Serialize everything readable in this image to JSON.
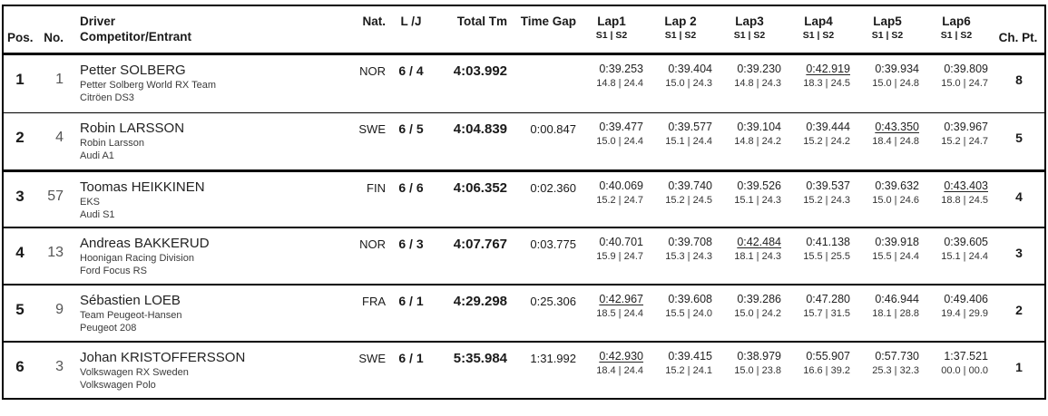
{
  "header": {
    "pos": "Pos.",
    "no": "No.",
    "driver_line1": "Driver",
    "driver_line2": "Competitor/Entrant",
    "nat": "Nat.",
    "lj": "L /J",
    "total": "Total Tm",
    "gap": "Time Gap",
    "laps": [
      {
        "label": "Lap1",
        "sub": "S1 | S2"
      },
      {
        "label": "Lap 2",
        "sub": "S1 | S2"
      },
      {
        "label": "Lap3",
        "sub": "S1 | S2"
      },
      {
        "label": "Lap4",
        "sub": "S1 | S2"
      },
      {
        "label": "Lap5",
        "sub": "S1 | S2"
      },
      {
        "label": "Lap6",
        "sub": "S1 | S2"
      }
    ],
    "chpt": "Ch. Pt."
  },
  "rows": [
    {
      "pos": "1",
      "no": "1",
      "driver": "Petter SOLBERG",
      "team": "Petter Solberg World RX Team",
      "car": "Citröen DS3",
      "nat": "NOR",
      "lj": "6 / 4",
      "total": "4:03.992",
      "gap": "",
      "laps": [
        {
          "time": "0:39.253",
          "sectors": "14.8 | 24.4",
          "joker": false
        },
        {
          "time": "0:39.404",
          "sectors": "15.0 | 24.3",
          "joker": false
        },
        {
          "time": "0:39.230",
          "sectors": "14.8 | 24.3",
          "joker": false
        },
        {
          "time": "0:42.919",
          "sectors": "18.3 | 24.5",
          "joker": true
        },
        {
          "time": "0:39.934",
          "sectors": "15.0 | 24.8",
          "joker": false
        },
        {
          "time": "0:39.809",
          "sectors": "15.0 | 24.7",
          "joker": false
        }
      ],
      "chpt": "8"
    },
    {
      "pos": "2",
      "no": "4",
      "driver": "Robin LARSSON",
      "team": "Robin Larsson",
      "car": "Audi A1",
      "nat": "SWE",
      "lj": "6 / 5",
      "total": "4:04.839",
      "gap": "0:00.847",
      "laps": [
        {
          "time": "0:39.477",
          "sectors": "15.0 | 24.4",
          "joker": false
        },
        {
          "time": "0:39.577",
          "sectors": "15.1 | 24.4",
          "joker": false
        },
        {
          "time": "0:39.104",
          "sectors": "14.8 | 24.2",
          "joker": false
        },
        {
          "time": "0:39.444",
          "sectors": "15.2 | 24.2",
          "joker": false
        },
        {
          "time": "0:43.350",
          "sectors": "18.4 | 24.8",
          "joker": true
        },
        {
          "time": "0:39.967",
          "sectors": "15.2 | 24.7",
          "joker": false
        }
      ],
      "chpt": "5"
    },
    {
      "pos": "3",
      "no": "57",
      "driver": "Toomas HEIKKINEN",
      "team": "EKS",
      "car": "Audi S1",
      "nat": "FIN",
      "lj": "6 / 6",
      "total": "4:06.352",
      "gap": "0:02.360",
      "laps": [
        {
          "time": "0:40.069",
          "sectors": "15.2 | 24.7",
          "joker": false
        },
        {
          "time": "0:39.740",
          "sectors": "15.2 | 24.5",
          "joker": false
        },
        {
          "time": "0:39.526",
          "sectors": "15.1 | 24.3",
          "joker": false
        },
        {
          "time": "0:39.537",
          "sectors": "15.2 | 24.3",
          "joker": false
        },
        {
          "time": "0:39.632",
          "sectors": "15.0 | 24.6",
          "joker": false
        },
        {
          "time": "0:43.403",
          "sectors": "18.8 | 24.5",
          "joker": true
        }
      ],
      "chpt": "4"
    },
    {
      "pos": "4",
      "no": "13",
      "driver": "Andreas BAKKERUD",
      "team": "Hoonigan Racing Division",
      "car": "Ford Focus RS",
      "nat": "NOR",
      "lj": "6 / 3",
      "total": "4:07.767",
      "gap": "0:03.775",
      "laps": [
        {
          "time": "0:40.701",
          "sectors": "15.9 | 24.7",
          "joker": false
        },
        {
          "time": "0:39.708",
          "sectors": "15.3 | 24.3",
          "joker": false
        },
        {
          "time": "0:42.484",
          "sectors": "18.1 | 24.3",
          "joker": true
        },
        {
          "time": "0:41.138",
          "sectors": "15.5 | 25.5",
          "joker": false
        },
        {
          "time": "0:39.918",
          "sectors": "15.5 | 24.4",
          "joker": false
        },
        {
          "time": "0:39.605",
          "sectors": "15.1 | 24.4",
          "joker": false
        }
      ],
      "chpt": "3"
    },
    {
      "pos": "5",
      "no": "9",
      "driver": "Sébastien LOEB",
      "team": "Team Peugeot-Hansen",
      "car": "Peugeot 208",
      "nat": "FRA",
      "lj": "6 / 1",
      "total": "4:29.298",
      "gap": "0:25.306",
      "laps": [
        {
          "time": "0:42.967",
          "sectors": "18.5 | 24.4",
          "joker": true
        },
        {
          "time": "0:39.608",
          "sectors": "15.5 | 24.0",
          "joker": false
        },
        {
          "time": "0:39.286",
          "sectors": "15.0 | 24.2",
          "joker": false
        },
        {
          "time": "0:47.280",
          "sectors": "15.7 | 31.5",
          "joker": false
        },
        {
          "time": "0:46.944",
          "sectors": "18.1 | 28.8",
          "joker": false
        },
        {
          "time": "0:49.406",
          "sectors": "19.4 | 29.9",
          "joker": false
        }
      ],
      "chpt": "2"
    },
    {
      "pos": "6",
      "no": "3",
      "driver": "Johan KRISTOFFERSSON",
      "team": "Volkswagen RX Sweden",
      "car": "Volkswagen Polo",
      "nat": "SWE",
      "lj": "6 / 1",
      "total": "5:35.984",
      "gap": "1:31.992",
      "laps": [
        {
          "time": "0:42.930",
          "sectors": "18.4 | 24.4",
          "joker": true
        },
        {
          "time": "0:39.415",
          "sectors": "15.2 | 24.1",
          "joker": false
        },
        {
          "time": "0:38.979",
          "sectors": "15.0 | 23.8",
          "joker": false
        },
        {
          "time": "0:55.907",
          "sectors": "16.6 | 39.2",
          "joker": false
        },
        {
          "time": "0:57.730",
          "sectors": "25.3 | 32.3",
          "joker": false
        },
        {
          "time": "1:37.521",
          "sectors": "00.0 | 00.0",
          "joker": false
        }
      ],
      "chpt": "1"
    }
  ]
}
